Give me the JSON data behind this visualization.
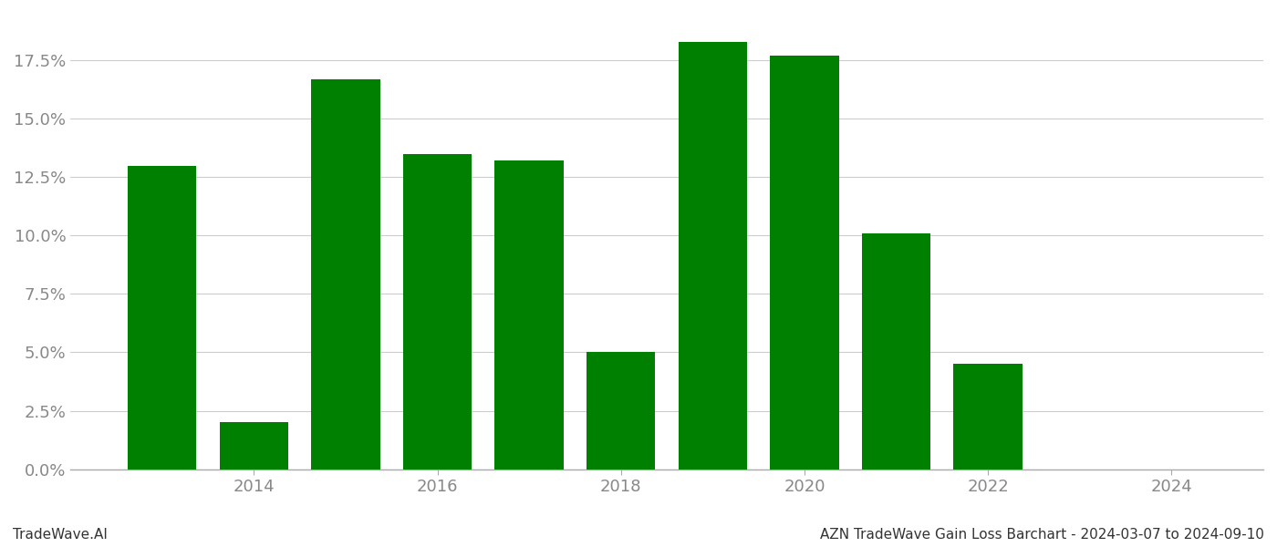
{
  "years": [
    2013,
    2014,
    2015,
    2016,
    2017,
    2018,
    2019,
    2020,
    2021,
    2022,
    2023
  ],
  "values": [
    0.13,
    0.02,
    0.167,
    0.135,
    0.132,
    0.05,
    0.183,
    0.177,
    0.101,
    0.045,
    0.0
  ],
  "bar_color": "#008000",
  "background_color": "#ffffff",
  "grid_color": "#cccccc",
  "axis_color": "#999999",
  "footer_left": "TradeWave.AI",
  "footer_right": "AZN TradeWave Gain Loss Barchart - 2024-03-07 to 2024-09-10",
  "ylim": [
    0.0,
    0.195
  ],
  "yticks": [
    0.0,
    0.025,
    0.05,
    0.075,
    0.1,
    0.125,
    0.15,
    0.175
  ],
  "xtick_labels": [
    "2014",
    "2016",
    "2018",
    "2020",
    "2022",
    "2024"
  ],
  "xtick_positions": [
    2014,
    2016,
    2018,
    2020,
    2022,
    2024
  ],
  "xlim": [
    2012.0,
    2025.0
  ],
  "bar_width": 0.75,
  "footer_fontsize": 11,
  "tick_fontsize": 13,
  "tick_color": "#888888"
}
